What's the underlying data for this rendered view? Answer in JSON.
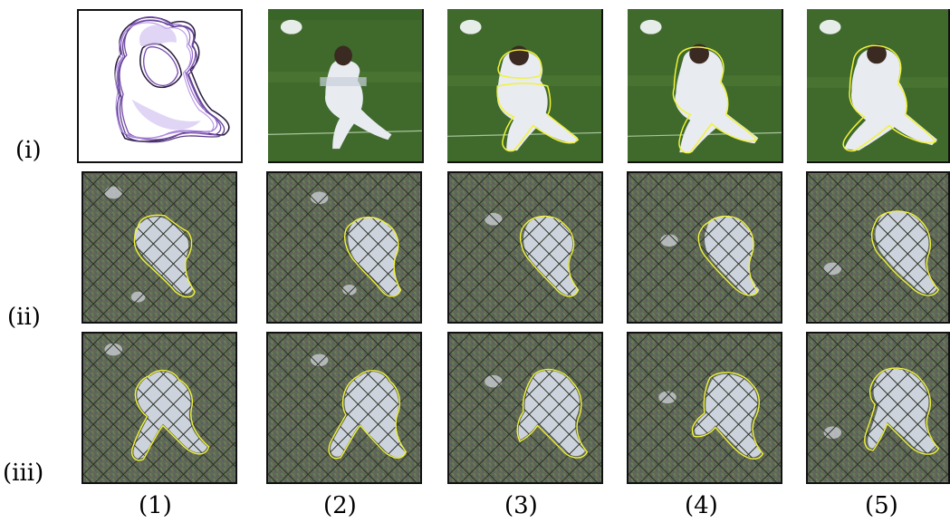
{
  "figure": {
    "row_labels": [
      "(i)",
      "(ii)",
      "(iii)"
    ],
    "column_labels": [
      "(1)",
      "(2)",
      "(3)",
      "(4)",
      "(5)"
    ],
    "colors": {
      "contour": "#f2f23a",
      "grass": "#3f6a2c",
      "grass_light": "#4e7a35",
      "shape_stroke": "#7a4fb0",
      "shape_stroke_dark": "#2a1d40",
      "mesh_base": "#5d6a52",
      "player": "#ccd2dd"
    }
  }
}
